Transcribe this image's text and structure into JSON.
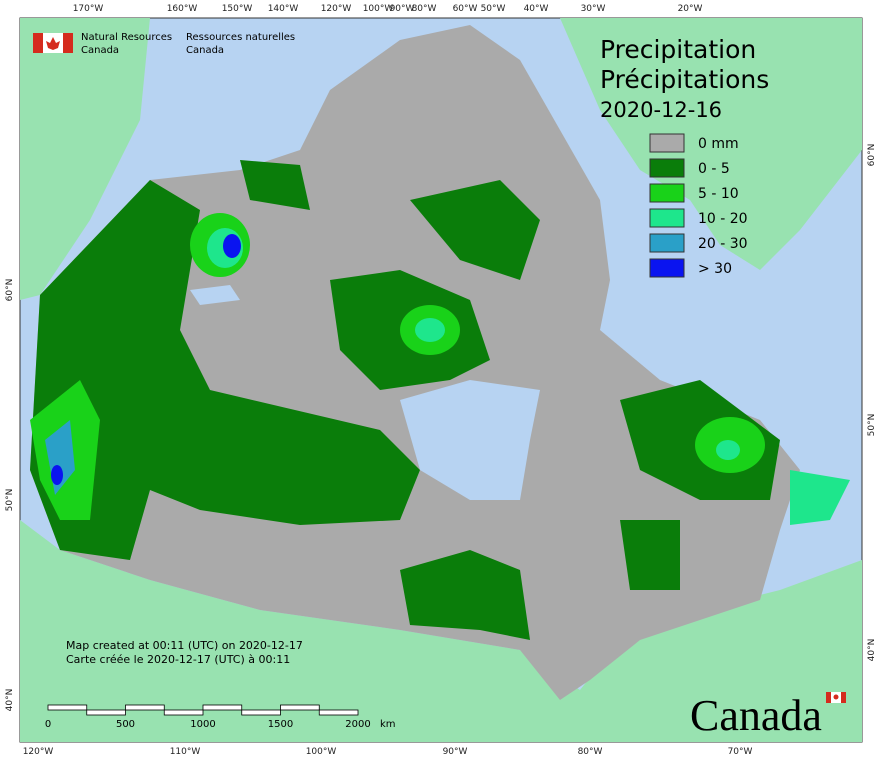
{
  "header": {
    "agency_en": [
      "Natural Resources",
      "Canada"
    ],
    "agency_fr": [
      "Ressources naturelles",
      "Canada"
    ]
  },
  "title": {
    "en": "Precipitation",
    "fr": "Précipitations",
    "date": "2020-12-16"
  },
  "legend": [
    {
      "label": "0 mm",
      "color": "#aaaaaa"
    },
    {
      "label": "0 - 5",
      "color": "#0a7d0a"
    },
    {
      "label": "5 - 10",
      "color": "#19d219"
    },
    {
      "label": "10 - 20",
      "color": "#1ee68c"
    },
    {
      "label": "20 - 30",
      "color": "#2aa0c8"
    },
    {
      "label": "> 30",
      "color": "#0a14f0"
    }
  ],
  "credits": [
    "Map created at 00:11 (UTC) on 2020-12-17",
    "Carte créée le 2020-12-17 (UTC) à 00:11"
  ],
  "scale_bar": {
    "labels": [
      "0",
      "500",
      "1000",
      "1500",
      "2000"
    ],
    "unit": "km"
  },
  "graticule": {
    "top": [
      "170°W",
      "160°W",
      "150°W",
      "140°W",
      "120°W",
      "100°W",
      "90°W",
      "80°W",
      "60°W",
      "50°W",
      "40°W",
      "30°W",
      "20°W"
    ],
    "bottom": [
      "120°W",
      "110°W",
      "100°W",
      "90°W",
      "80°W",
      "70°W"
    ],
    "left": [
      "60°N",
      "50°N",
      "40°N"
    ],
    "right": [
      "60°N",
      "50°N",
      "40°N"
    ]
  },
  "wordmark": "Canada"
}
